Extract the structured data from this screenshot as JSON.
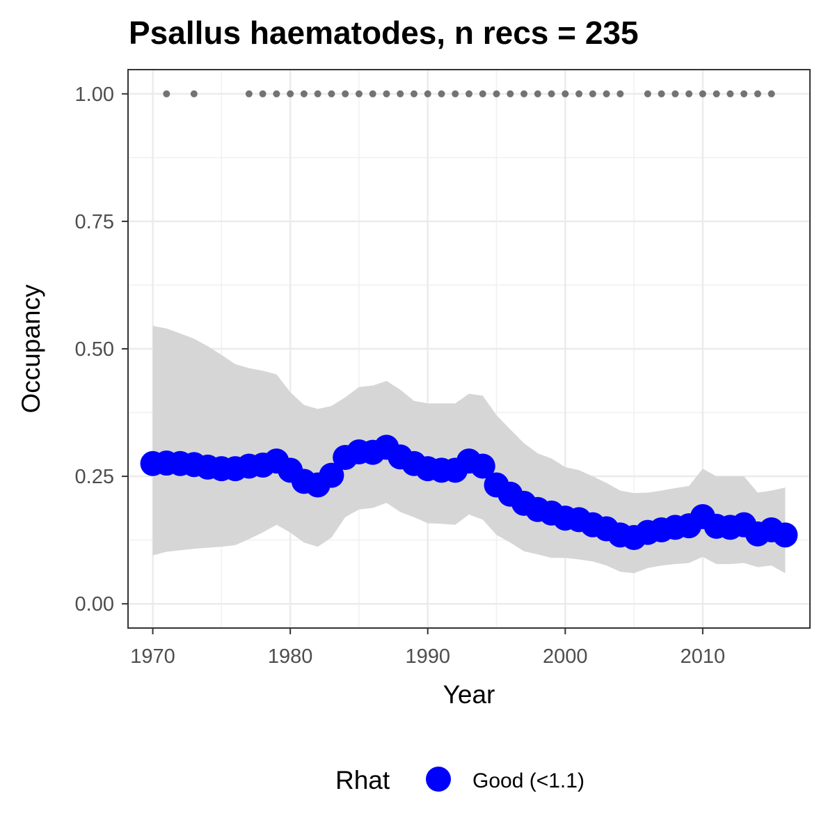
{
  "chart_data": {
    "type": "line",
    "title": "Psallus haematodes, n recs = 235",
    "xlabel": "Year",
    "ylabel": "Occupancy",
    "xlim": [
      1968.2,
      2017.8
    ],
    "ylim": [
      -0.0475,
      1.0475
    ],
    "x_ticks": [
      1970,
      1980,
      1990,
      2000,
      2010
    ],
    "y_ticks": [
      0.0,
      0.25,
      0.5,
      0.75,
      1.0
    ],
    "y_tick_labels": [
      "0.00",
      "0.25",
      "0.50",
      "0.75",
      "1.00"
    ],
    "grid": true,
    "legend_position": "bottom",
    "legend_title": "Rhat",
    "series": [
      {
        "name": "Good (<1.1)",
        "color": "#0000ff",
        "x": [
          1970,
          1971,
          1972,
          1973,
          1974,
          1975,
          1976,
          1977,
          1978,
          1979,
          1980,
          1981,
          1982,
          1983,
          1984,
          1985,
          1986,
          1987,
          1988,
          1989,
          1990,
          1991,
          1992,
          1993,
          1994,
          1995,
          1996,
          1997,
          1998,
          1999,
          2000,
          2001,
          2002,
          2003,
          2004,
          2005,
          2006,
          2007,
          2008,
          2009,
          2010,
          2011,
          2012,
          2013,
          2014,
          2015,
          2016
        ],
        "y": [
          0.275,
          0.276,
          0.275,
          0.273,
          0.268,
          0.265,
          0.265,
          0.27,
          0.272,
          0.28,
          0.262,
          0.24,
          0.233,
          0.252,
          0.287,
          0.298,
          0.297,
          0.307,
          0.288,
          0.275,
          0.265,
          0.262,
          0.262,
          0.28,
          0.27,
          0.233,
          0.215,
          0.197,
          0.185,
          0.178,
          0.168,
          0.165,
          0.155,
          0.147,
          0.135,
          0.13,
          0.14,
          0.145,
          0.15,
          0.153,
          0.171,
          0.152,
          0.15,
          0.155,
          0.137,
          0.145,
          0.135
        ]
      }
    ],
    "ribbon": {
      "name": "credible interval",
      "color": "#d6d6d6",
      "x": [
        1970,
        1971,
        1972,
        1973,
        1974,
        1975,
        1976,
        1977,
        1978,
        1979,
        1980,
        1981,
        1982,
        1983,
        1984,
        1985,
        1986,
        1987,
        1988,
        1989,
        1990,
        1991,
        1992,
        1993,
        1994,
        1995,
        1996,
        1997,
        1998,
        1999,
        2000,
        2001,
        2002,
        2003,
        2004,
        2005,
        2006,
        2007,
        2008,
        2009,
        2010,
        2011,
        2012,
        2013,
        2014,
        2015,
        2016
      ],
      "lower": [
        0.095,
        0.102,
        0.105,
        0.108,
        0.11,
        0.112,
        0.115,
        0.127,
        0.14,
        0.155,
        0.14,
        0.12,
        0.112,
        0.13,
        0.17,
        0.185,
        0.188,
        0.198,
        0.18,
        0.17,
        0.158,
        0.157,
        0.155,
        0.175,
        0.165,
        0.135,
        0.12,
        0.103,
        0.097,
        0.09,
        0.09,
        0.087,
        0.083,
        0.075,
        0.063,
        0.06,
        0.07,
        0.075,
        0.078,
        0.08,
        0.092,
        0.078,
        0.078,
        0.08,
        0.072,
        0.075,
        0.06
      ],
      "upper": [
        0.545,
        0.54,
        0.53,
        0.52,
        0.505,
        0.488,
        0.47,
        0.462,
        0.457,
        0.45,
        0.415,
        0.39,
        0.382,
        0.388,
        0.405,
        0.425,
        0.428,
        0.437,
        0.42,
        0.398,
        0.393,
        0.393,
        0.393,
        0.412,
        0.408,
        0.37,
        0.342,
        0.315,
        0.295,
        0.285,
        0.268,
        0.262,
        0.25,
        0.237,
        0.222,
        0.217,
        0.218,
        0.222,
        0.227,
        0.231,
        0.265,
        0.25,
        0.25,
        0.25,
        0.218,
        0.222,
        0.228
      ]
    },
    "records": {
      "name": "years with records",
      "color": "#737373",
      "x": [
        1971,
        1973,
        1977,
        1978,
        1979,
        1980,
        1981,
        1982,
        1983,
        1984,
        1985,
        1986,
        1987,
        1988,
        1989,
        1990,
        1991,
        1992,
        1993,
        1994,
        1995,
        1996,
        1997,
        1998,
        1999,
        2000,
        2001,
        2002,
        2003,
        2004,
        2006,
        2007,
        2008,
        2009,
        2010,
        2011,
        2012,
        2013,
        2014,
        2015
      ],
      "y": 1.0
    }
  }
}
